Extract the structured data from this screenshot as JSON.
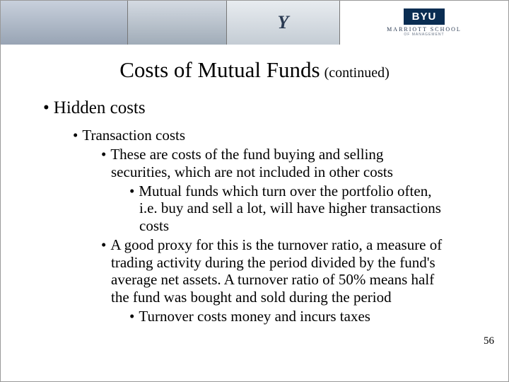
{
  "banner": {
    "byu_label": "BYU",
    "marriott_label": "MARRIOTT SCHOOL",
    "marriott_sub": "OF MANAGEMENT",
    "y_glyph": "Y"
  },
  "title": {
    "main": "Costs of Mutual Funds",
    "continued": "(continued)"
  },
  "content": {
    "l1": "Hidden costs",
    "l2": "Transaction costs",
    "l3a": "These are costs of the fund buying and selling securities, which are not included in other costs",
    "l4a": "Mutual funds which turn over the portfolio often, i.e. buy and sell a lot, will have higher transactions costs",
    "l3b": "A good proxy for this is the turnover ratio, a measure of trading activity during the period divided by the fund's average net assets.  A turnover ratio of 50% means half the fund was bought and sold during the period",
    "l4b": "Turnover costs money and incurs taxes"
  },
  "page_number": "56",
  "colors": {
    "byu_navy": "#0a2d52",
    "text": "#000000",
    "bg": "#ffffff"
  }
}
